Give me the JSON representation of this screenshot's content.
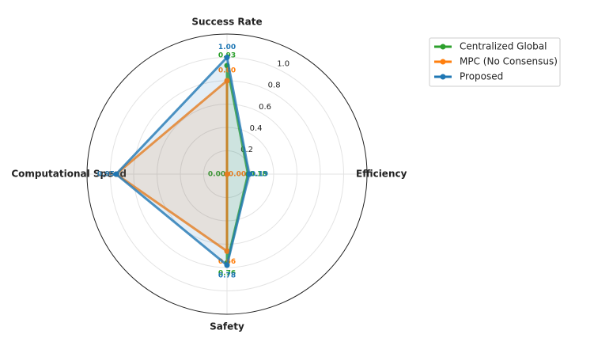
{
  "chart_data": {
    "type": "radar",
    "categories": [
      "Success Rate",
      "Efficiency",
      "Safety",
      "Computational Speed"
    ],
    "series": [
      {
        "name": "Centralized Global",
        "color": "#2ca02c",
        "values": [
          0.93,
          0.18,
          0.76,
          0.0
        ],
        "value_labels": [
          "0.93",
          "0.18",
          "0.76",
          "0.00"
        ]
      },
      {
        "name": "MPC (No Consensus)",
        "color": "#ff7f0e",
        "values": [
          0.8,
          0.0,
          0.66,
          0.95
        ],
        "value_labels": [
          "0.80",
          "0.00",
          "0.66",
          "0.95"
        ]
      },
      {
        "name": "Proposed",
        "color": "#1f77b4",
        "values": [
          1.0,
          0.19,
          0.78,
          0.95
        ],
        "value_labels": [
          "1.00",
          "0.19",
          "0.78",
          "0.95"
        ]
      }
    ],
    "ylim": [
      0,
      1.2
    ],
    "yticks": [
      0.2,
      0.4,
      0.6,
      0.8,
      {
        "value": 1,
        "label": "1.0"
      }
    ],
    "grid": true,
    "legend": "upper right"
  }
}
